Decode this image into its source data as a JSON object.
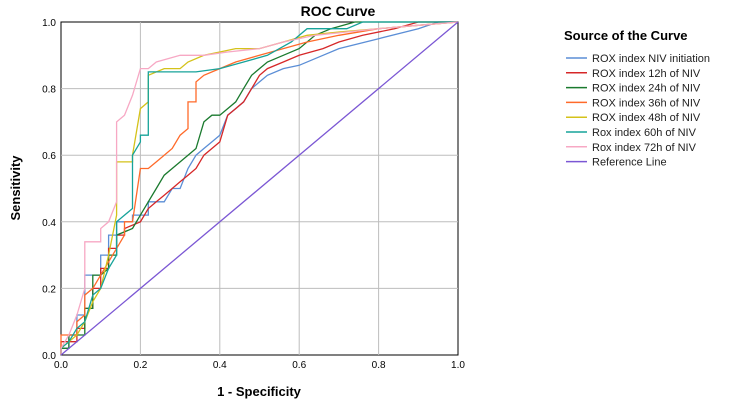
{
  "chart_data": {
    "type": "line",
    "title": "ROC Curve",
    "xlabel": "1 - Specificity",
    "ylabel": "Sensitivity",
    "xlim": [
      0,
      1
    ],
    "ylim": [
      0,
      1
    ],
    "x_ticks": [
      "0.0",
      "0.2",
      "0.4",
      "0.6",
      "0.8",
      "1.0"
    ],
    "y_ticks": [
      "0.0",
      "0.2",
      "0.4",
      "0.6",
      "0.8",
      "1.0"
    ],
    "grid": true,
    "legend_title": "Source of the Curve",
    "legend_position": "right",
    "series": [
      {
        "name": "ROX index NIV initiation",
        "color": "#5b8ed6",
        "points": [
          [
            0,
            0
          ],
          [
            0,
            0.02
          ],
          [
            0.02,
            0.02
          ],
          [
            0.02,
            0.06
          ],
          [
            0.04,
            0.06
          ],
          [
            0.04,
            0.12
          ],
          [
            0.06,
            0.12
          ],
          [
            0.06,
            0.24
          ],
          [
            0.1,
            0.24
          ],
          [
            0.1,
            0.3
          ],
          [
            0.12,
            0.3
          ],
          [
            0.12,
            0.36
          ],
          [
            0.14,
            0.36
          ],
          [
            0.14,
            0.4
          ],
          [
            0.18,
            0.4
          ],
          [
            0.18,
            0.42
          ],
          [
            0.22,
            0.42
          ],
          [
            0.22,
            0.46
          ],
          [
            0.26,
            0.46
          ],
          [
            0.28,
            0.5
          ],
          [
            0.3,
            0.5
          ],
          [
            0.32,
            0.56
          ],
          [
            0.34,
            0.6
          ],
          [
            0.36,
            0.62
          ],
          [
            0.38,
            0.64
          ],
          [
            0.4,
            0.66
          ],
          [
            0.42,
            0.72
          ],
          [
            0.44,
            0.74
          ],
          [
            0.46,
            0.76
          ],
          [
            0.48,
            0.8
          ],
          [
            0.5,
            0.82
          ],
          [
            0.52,
            0.84
          ],
          [
            0.56,
            0.86
          ],
          [
            0.6,
            0.87
          ],
          [
            0.66,
            0.9
          ],
          [
            0.7,
            0.92
          ],
          [
            0.8,
            0.95
          ],
          [
            0.9,
            0.98
          ],
          [
            0.95,
            1.0
          ],
          [
            1.0,
            1.0
          ]
        ]
      },
      {
        "name": "ROX index 12h of NIV",
        "color": "#d62728",
        "points": [
          [
            0,
            0
          ],
          [
            0,
            0.04
          ],
          [
            0.04,
            0.04
          ],
          [
            0.04,
            0.08
          ],
          [
            0.06,
            0.08
          ],
          [
            0.06,
            0.14
          ],
          [
            0.08,
            0.14
          ],
          [
            0.08,
            0.2
          ],
          [
            0.1,
            0.2
          ],
          [
            0.1,
            0.26
          ],
          [
            0.12,
            0.26
          ],
          [
            0.12,
            0.32
          ],
          [
            0.14,
            0.32
          ],
          [
            0.14,
            0.36
          ],
          [
            0.16,
            0.36
          ],
          [
            0.16,
            0.38
          ],
          [
            0.2,
            0.4
          ],
          [
            0.22,
            0.44
          ],
          [
            0.24,
            0.46
          ],
          [
            0.26,
            0.48
          ],
          [
            0.28,
            0.5
          ],
          [
            0.3,
            0.52
          ],
          [
            0.32,
            0.54
          ],
          [
            0.34,
            0.56
          ],
          [
            0.36,
            0.6
          ],
          [
            0.38,
            0.62
          ],
          [
            0.4,
            0.64
          ],
          [
            0.42,
            0.72
          ],
          [
            0.44,
            0.74
          ],
          [
            0.46,
            0.76
          ],
          [
            0.48,
            0.8
          ],
          [
            0.5,
            0.84
          ],
          [
            0.52,
            0.86
          ],
          [
            0.56,
            0.88
          ],
          [
            0.6,
            0.9
          ],
          [
            0.66,
            0.92
          ],
          [
            0.7,
            0.94
          ],
          [
            0.76,
            0.96
          ],
          [
            0.84,
            0.98
          ],
          [
            0.9,
            1.0
          ],
          [
            1.0,
            1.0
          ]
        ]
      },
      {
        "name": "ROX index 24h of NIV",
        "color": "#1a7a2e",
        "points": [
          [
            0,
            0
          ],
          [
            0,
            0.02
          ],
          [
            0.02,
            0.02
          ],
          [
            0.02,
            0.06
          ],
          [
            0.06,
            0.06
          ],
          [
            0.06,
            0.14
          ],
          [
            0.08,
            0.14
          ],
          [
            0.08,
            0.24
          ],
          [
            0.1,
            0.24
          ],
          [
            0.12,
            0.26
          ],
          [
            0.12,
            0.3
          ],
          [
            0.14,
            0.3
          ],
          [
            0.14,
            0.36
          ],
          [
            0.18,
            0.38
          ],
          [
            0.2,
            0.42
          ],
          [
            0.22,
            0.46
          ],
          [
            0.24,
            0.5
          ],
          [
            0.26,
            0.54
          ],
          [
            0.28,
            0.56
          ],
          [
            0.3,
            0.58
          ],
          [
            0.32,
            0.6
          ],
          [
            0.34,
            0.62
          ],
          [
            0.36,
            0.7
          ],
          [
            0.38,
            0.72
          ],
          [
            0.4,
            0.72
          ],
          [
            0.42,
            0.74
          ],
          [
            0.44,
            0.76
          ],
          [
            0.46,
            0.8
          ],
          [
            0.48,
            0.84
          ],
          [
            0.5,
            0.86
          ],
          [
            0.52,
            0.88
          ],
          [
            0.56,
            0.9
          ],
          [
            0.6,
            0.92
          ],
          [
            0.64,
            0.96
          ],
          [
            0.68,
            0.98
          ],
          [
            0.74,
            1.0
          ],
          [
            1.0,
            1.0
          ]
        ]
      },
      {
        "name": "ROX index 36h of NIV",
        "color": "#ff6a2a",
        "points": [
          [
            0,
            0
          ],
          [
            0,
            0.06
          ],
          [
            0.04,
            0.06
          ],
          [
            0.04,
            0.1
          ],
          [
            0.06,
            0.12
          ],
          [
            0.06,
            0.18
          ],
          [
            0.08,
            0.2
          ],
          [
            0.1,
            0.24
          ],
          [
            0.12,
            0.28
          ],
          [
            0.14,
            0.32
          ],
          [
            0.16,
            0.36
          ],
          [
            0.16,
            0.4
          ],
          [
            0.18,
            0.4
          ],
          [
            0.2,
            0.56
          ],
          [
            0.22,
            0.56
          ],
          [
            0.24,
            0.58
          ],
          [
            0.26,
            0.6
          ],
          [
            0.28,
            0.62
          ],
          [
            0.3,
            0.66
          ],
          [
            0.32,
            0.68
          ],
          [
            0.32,
            0.76
          ],
          [
            0.34,
            0.76
          ],
          [
            0.34,
            0.82
          ],
          [
            0.36,
            0.84
          ],
          [
            0.4,
            0.86
          ],
          [
            0.44,
            0.88
          ],
          [
            0.5,
            0.9
          ],
          [
            0.56,
            0.92
          ],
          [
            0.62,
            0.94
          ],
          [
            0.7,
            0.96
          ],
          [
            0.8,
            0.98
          ],
          [
            0.9,
            0.99
          ],
          [
            1.0,
            1.0
          ]
        ]
      },
      {
        "name": "ROX index 48h of NIV",
        "color": "#d4c21a",
        "points": [
          [
            0,
            0
          ],
          [
            0,
            0.02
          ],
          [
            0.02,
            0.04
          ],
          [
            0.04,
            0.06
          ],
          [
            0.06,
            0.1
          ],
          [
            0.08,
            0.16
          ],
          [
            0.1,
            0.2
          ],
          [
            0.12,
            0.3
          ],
          [
            0.14,
            0.42
          ],
          [
            0.14,
            0.58
          ],
          [
            0.18,
            0.58
          ],
          [
            0.18,
            0.6
          ],
          [
            0.2,
            0.74
          ],
          [
            0.22,
            0.76
          ],
          [
            0.22,
            0.84
          ],
          [
            0.26,
            0.86
          ],
          [
            0.3,
            0.86
          ],
          [
            0.32,
            0.88
          ],
          [
            0.36,
            0.9
          ],
          [
            0.4,
            0.91
          ],
          [
            0.44,
            0.92
          ],
          [
            0.5,
            0.92
          ],
          [
            0.56,
            0.94
          ],
          [
            0.62,
            0.96
          ],
          [
            0.7,
            0.97
          ],
          [
            0.8,
            0.98
          ],
          [
            0.9,
            0.99
          ],
          [
            1.0,
            1.0
          ]
        ]
      },
      {
        "name": "Rox index 60h of NIV",
        "color": "#17a39a",
        "points": [
          [
            0,
            0
          ],
          [
            0,
            0.02
          ],
          [
            0.02,
            0.04
          ],
          [
            0.04,
            0.08
          ],
          [
            0.06,
            0.1
          ],
          [
            0.08,
            0.18
          ],
          [
            0.1,
            0.2
          ],
          [
            0.12,
            0.26
          ],
          [
            0.14,
            0.3
          ],
          [
            0.14,
            0.4
          ],
          [
            0.18,
            0.44
          ],
          [
            0.18,
            0.6
          ],
          [
            0.2,
            0.64
          ],
          [
            0.2,
            0.66
          ],
          [
            0.22,
            0.66
          ],
          [
            0.22,
            0.85
          ],
          [
            0.3,
            0.85
          ],
          [
            0.34,
            0.85
          ],
          [
            0.4,
            0.86
          ],
          [
            0.46,
            0.88
          ],
          [
            0.52,
            0.9
          ],
          [
            0.58,
            0.94
          ],
          [
            0.62,
            0.98
          ],
          [
            0.72,
            0.98
          ],
          [
            0.76,
            1.0
          ],
          [
            1.0,
            1.0
          ]
        ]
      },
      {
        "name": "Rox index 72h of NIV",
        "color": "#f7a8c4",
        "points": [
          [
            0,
            0
          ],
          [
            0,
            0.02
          ],
          [
            0.02,
            0.06
          ],
          [
            0.04,
            0.12
          ],
          [
            0.06,
            0.2
          ],
          [
            0.06,
            0.34
          ],
          [
            0.1,
            0.34
          ],
          [
            0.1,
            0.38
          ],
          [
            0.12,
            0.4
          ],
          [
            0.14,
            0.46
          ],
          [
            0.14,
            0.7
          ],
          [
            0.16,
            0.72
          ],
          [
            0.18,
            0.78
          ],
          [
            0.2,
            0.86
          ],
          [
            0.22,
            0.86
          ],
          [
            0.24,
            0.88
          ],
          [
            0.3,
            0.9
          ],
          [
            0.36,
            0.9
          ],
          [
            0.42,
            0.91
          ],
          [
            0.5,
            0.92
          ],
          [
            0.56,
            0.94
          ],
          [
            0.64,
            0.96
          ],
          [
            0.72,
            0.97
          ],
          [
            0.8,
            0.98
          ],
          [
            0.9,
            0.99
          ],
          [
            1.0,
            1.0
          ]
        ]
      },
      {
        "name": "Reference Line",
        "color": "#7b57d4",
        "points": [
          [
            0,
            0
          ],
          [
            1,
            1
          ]
        ]
      }
    ]
  }
}
